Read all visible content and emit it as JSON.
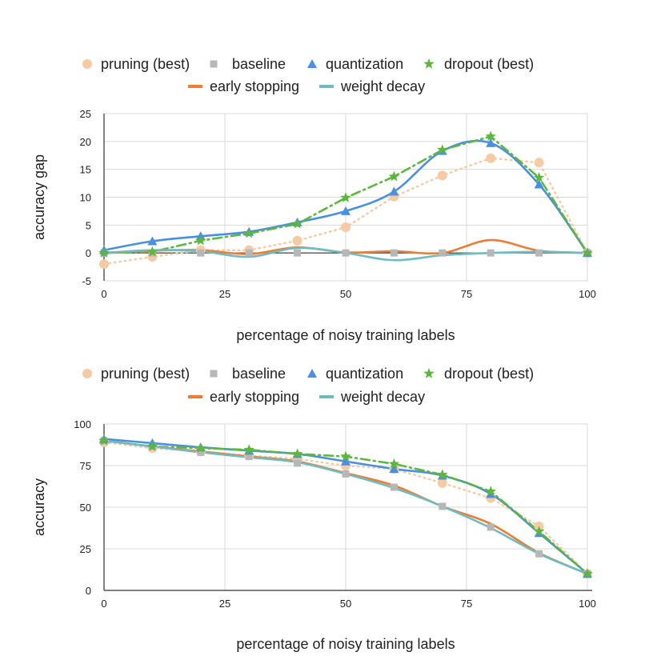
{
  "chart_data": [
    {
      "type": "line",
      "xlabel": "percentage of noisy training labels",
      "ylabel": "accuracy gap",
      "xlim": [
        0,
        100
      ],
      "ylim": [
        -5,
        25
      ],
      "xticks": [
        0,
        25,
        50,
        75,
        100
      ],
      "yticks": [
        -5,
        0,
        5,
        10,
        15,
        20,
        25
      ],
      "grid": true,
      "legend_position": "top",
      "x": [
        0,
        10,
        20,
        30,
        40,
        50,
        60,
        70,
        80,
        90,
        100
      ],
      "series": [
        {
          "name": "pruning (best)",
          "color": "#f6cba3",
          "line": "dotted",
          "marker": "circle",
          "smooth": false,
          "values": [
            -2,
            -0.7,
            0.5,
            0.5,
            2.2,
            4.6,
            10.1,
            13.9,
            17.0,
            16.2,
            0
          ]
        },
        {
          "name": "baseline",
          "color": "#b7b7b7",
          "line": "none",
          "marker": "square",
          "smooth": false,
          "values": [
            0,
            0,
            0,
            0,
            0,
            0,
            0,
            0,
            0,
            0,
            0
          ]
        },
        {
          "name": "quantization",
          "color": "#4a90e2",
          "line": "solid",
          "marker": "triangle",
          "smooth": true,
          "values": [
            0.5,
            2.1,
            3.0,
            3.8,
            5.5,
            7.5,
            11.0,
            18.3,
            19.7,
            12.3,
            0
          ]
        },
        {
          "name": "dropout (best)",
          "color": "#5cb83d",
          "line": "dashdot",
          "marker": "star",
          "smooth": false,
          "values": [
            0,
            0.2,
            2.2,
            3.5,
            5.2,
            9.9,
            13.7,
            18.5,
            20.9,
            13.5,
            0
          ]
        },
        {
          "name": "early stopping",
          "color": "#ee7d31",
          "line": "solid",
          "marker": "none",
          "smooth": true,
          "values": [
            0,
            0.4,
            0.5,
            -0.2,
            1.0,
            0.1,
            0.3,
            0,
            2.3,
            0.4,
            0
          ]
        },
        {
          "name": "weight decay",
          "color": "#6cbcc2",
          "line": "solid",
          "marker": "none",
          "smooth": true,
          "values": [
            0,
            0.5,
            0.3,
            -0.7,
            0.9,
            0,
            -1.3,
            -0.4,
            0,
            0.2,
            0
          ]
        }
      ]
    },
    {
      "type": "line",
      "xlabel": "percentage of noisy training labels",
      "ylabel": "accuracy",
      "xlim": [
        0,
        100
      ],
      "ylim": [
        0,
        100
      ],
      "xticks": [
        0,
        25,
        50,
        75,
        100
      ],
      "yticks": [
        0,
        25,
        50,
        75,
        100
      ],
      "grid": true,
      "legend_position": "top",
      "x": [
        0,
        10,
        20,
        30,
        40,
        50,
        60,
        70,
        80,
        90,
        100
      ],
      "series": [
        {
          "name": "pruning (best)",
          "color": "#f6cba3",
          "line": "dotted",
          "marker": "circle",
          "smooth": false,
          "values": [
            89,
            85.5,
            83.5,
            81,
            79,
            75,
            73,
            64.5,
            55.5,
            38.5,
            10
          ]
        },
        {
          "name": "baseline",
          "color": "#b7b7b7",
          "line": "none",
          "marker": "square",
          "smooth": false,
          "values": [
            90,
            86.5,
            83,
            80.5,
            76.5,
            70,
            62,
            50.5,
            38,
            22,
            10
          ]
        },
        {
          "name": "quantization",
          "color": "#4a90e2",
          "line": "solid",
          "marker": "triangle",
          "smooth": true,
          "values": [
            91,
            88.5,
            86,
            84,
            82,
            77.5,
            73,
            69,
            58,
            34.5,
            10
          ]
        },
        {
          "name": "dropout (best)",
          "color": "#5cb83d",
          "line": "dashdot",
          "marker": "star",
          "smooth": false,
          "values": [
            90,
            86.5,
            85.5,
            84.5,
            82,
            80.5,
            76,
            69.5,
            59.5,
            35.5,
            10
          ]
        },
        {
          "name": "early stopping",
          "color": "#ee7d31",
          "line": "solid",
          "marker": "none",
          "smooth": true,
          "values": [
            90,
            86.5,
            83.5,
            80.5,
            77.5,
            70.5,
            63,
            50.5,
            40,
            22.5,
            10
          ]
        },
        {
          "name": "weight decay",
          "color": "#6cbcc2",
          "line": "solid",
          "marker": "none",
          "smooth": true,
          "values": [
            90,
            86.5,
            83,
            80,
            77,
            70,
            61.5,
            50.5,
            37.5,
            22,
            10
          ]
        }
      ]
    }
  ]
}
